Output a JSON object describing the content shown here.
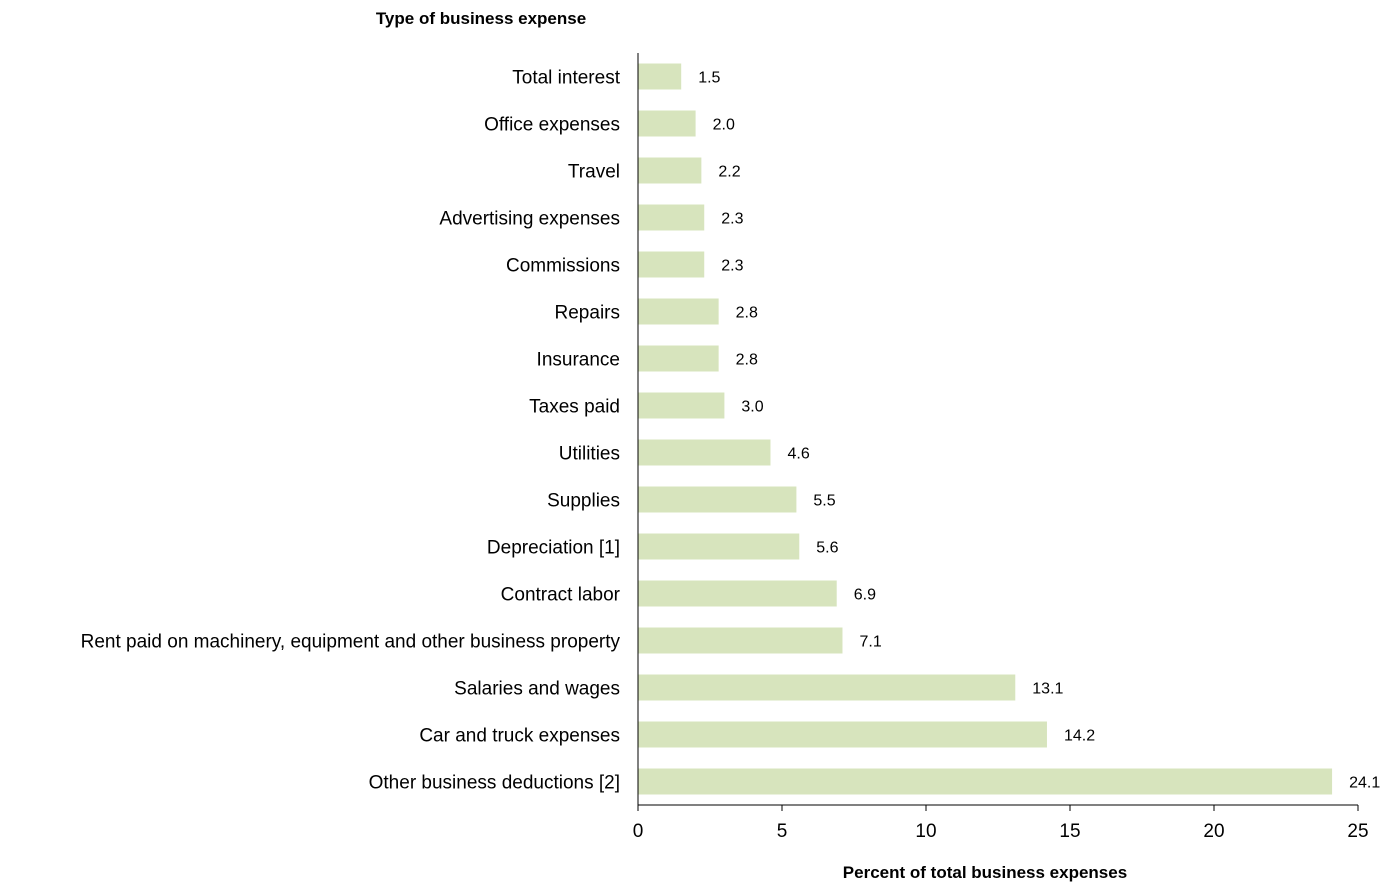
{
  "chart_data": {
    "type": "bar",
    "orientation": "horizontal",
    "ylabel": "Type of business expense",
    "xlabel": "Percent of total business expenses",
    "categories": [
      "Total interest",
      "Office expenses",
      "Travel",
      "Advertising expenses",
      "Commissions",
      "Repairs",
      "Insurance",
      "Taxes paid",
      "Utilities",
      "Supplies",
      "Depreciation [1]",
      "Contract labor",
      "Rent paid on machinery, equipment and other business property",
      "Salaries and wages",
      "Car and truck expenses",
      "Other business deductions [2]"
    ],
    "values": [
      1.5,
      2.0,
      2.2,
      2.3,
      2.3,
      2.8,
      2.8,
      3.0,
      4.6,
      5.5,
      5.6,
      6.9,
      7.1,
      13.1,
      14.2,
      24.1
    ],
    "value_labels": [
      "1.5",
      "2.0",
      "2.2",
      "2.3",
      "2.3",
      "2.8",
      "2.8",
      "3.0",
      "4.6",
      "5.5",
      "5.6",
      "6.9",
      "7.1",
      "13.1",
      "14.2",
      "24.1"
    ],
    "xlim": [
      0,
      25
    ],
    "xticks": [
      0,
      5,
      10,
      15,
      20,
      25
    ],
    "grid": false,
    "legend": "none",
    "colors": {
      "bar": "#d7e4bd",
      "axis": "#000000",
      "text": "#000000"
    }
  }
}
